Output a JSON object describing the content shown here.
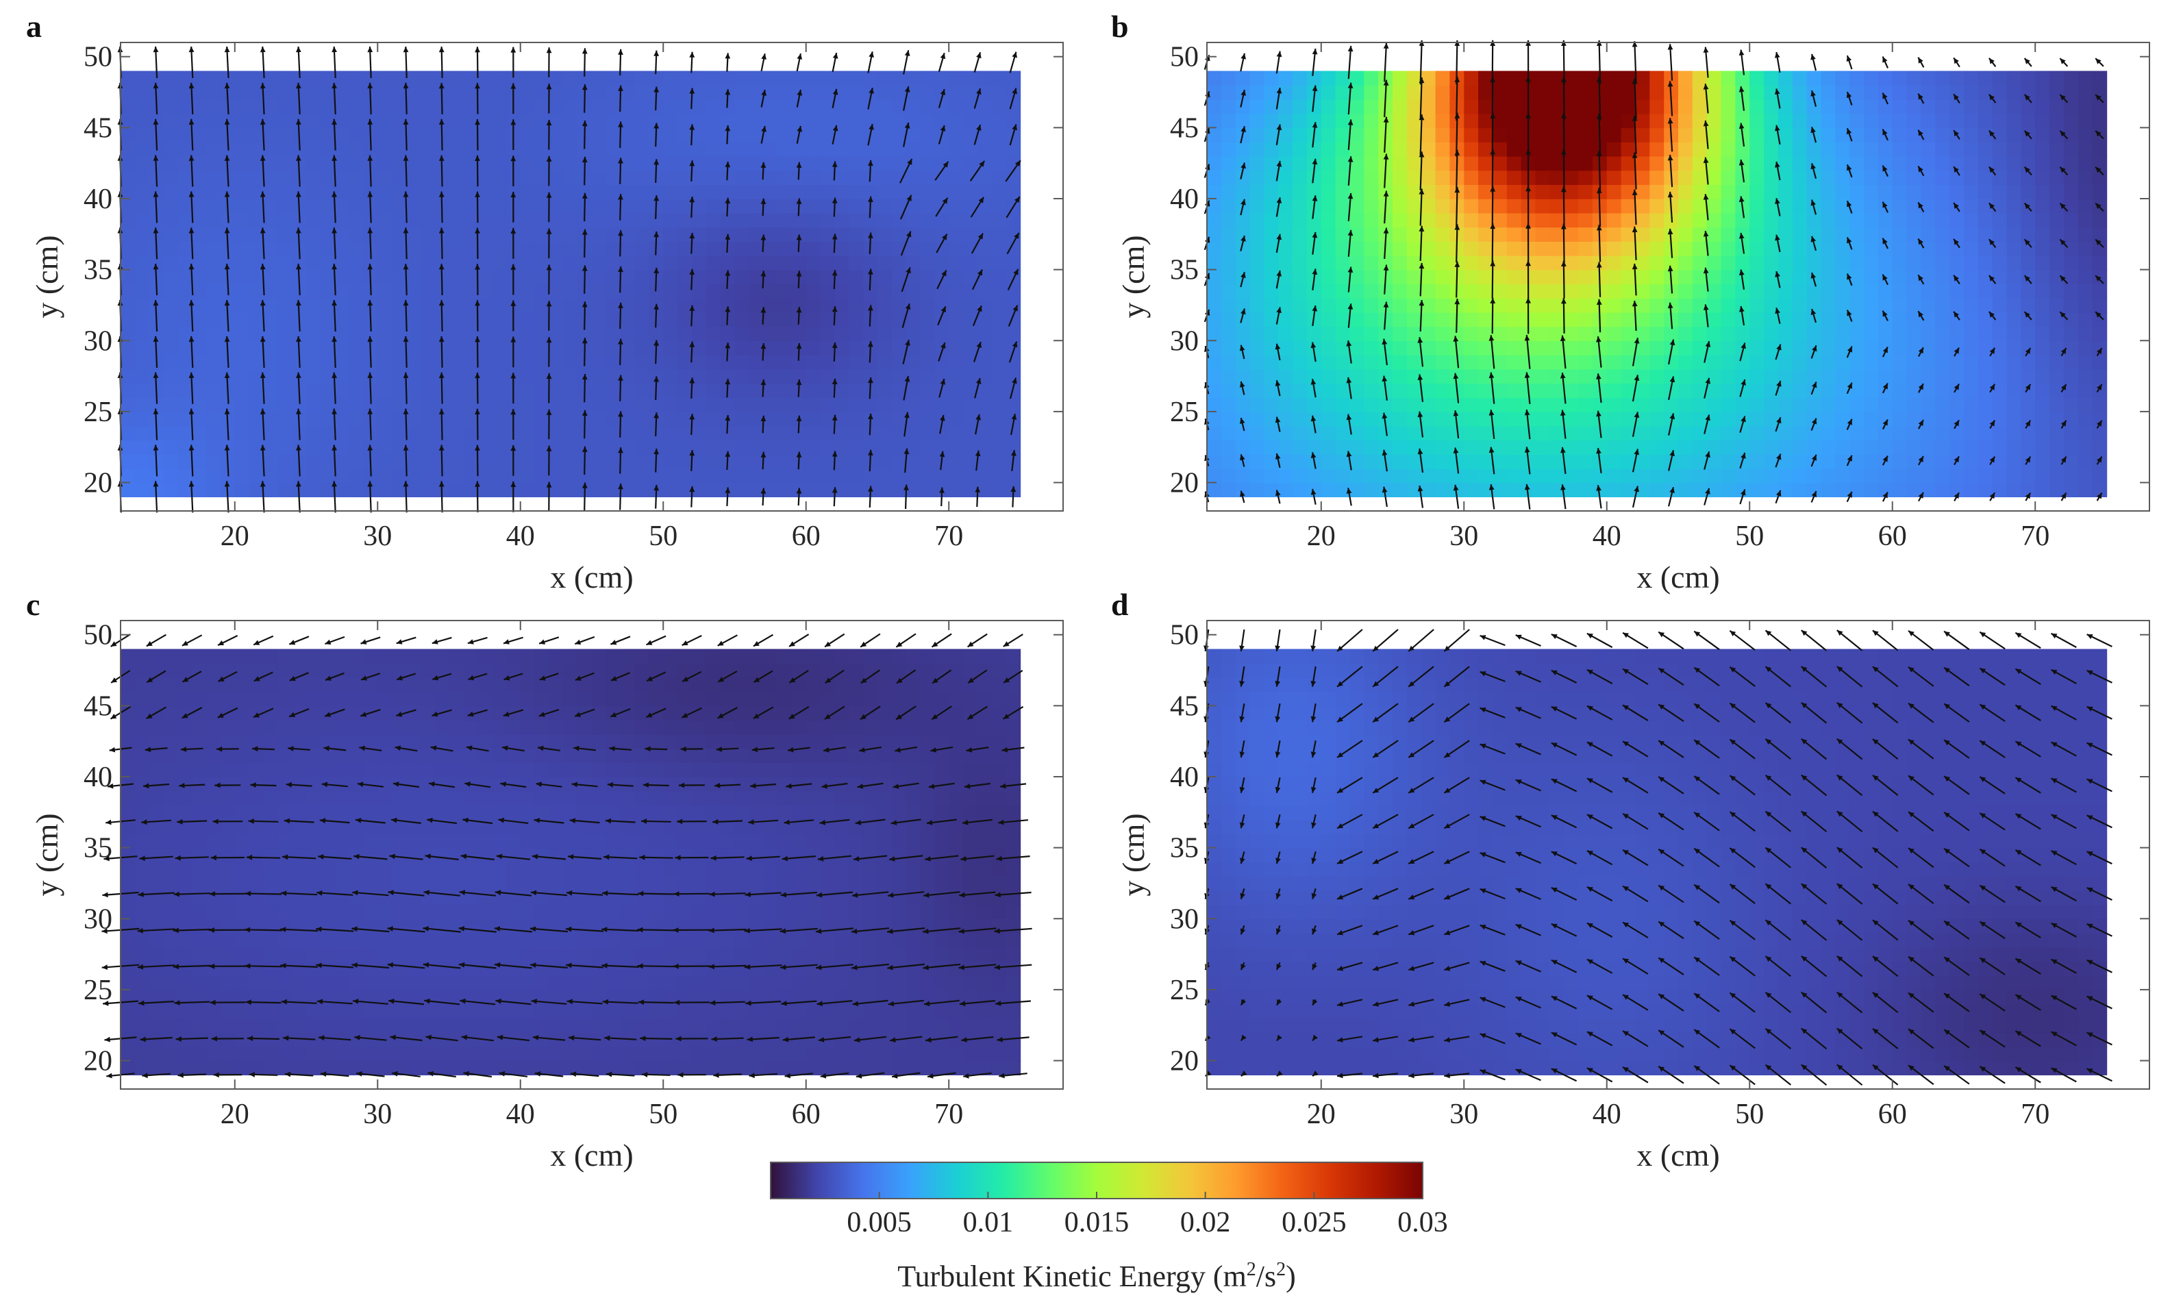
{
  "figure": {
    "description_type": "four-panel velocity vector field with turbulent kinetic energy contours"
  },
  "chart_data": [
    {
      "type": "heatmap",
      "panel": "a",
      "xlabel": "x (cm)",
      "ylabel": "y (cm)",
      "xlim": [
        12,
        78
      ],
      "ylim": [
        18,
        51
      ],
      "xticks": [
        20,
        30,
        40,
        50,
        60,
        70
      ],
      "yticks": [
        20,
        25,
        30,
        35,
        40,
        45,
        50
      ],
      "field_extent": {
        "x": [
          12,
          75
        ],
        "y": [
          19,
          49
        ]
      },
      "tke_base": 0.003,
      "tke_blobs": [
        {
          "x": 20,
          "y": 30,
          "sx": 8,
          "sy": 10,
          "amp": 0.0006
        },
        {
          "x": 58,
          "y": 33,
          "sx": 6,
          "sy": 5,
          "amp": -0.0012
        },
        {
          "x": 12,
          "y": 19,
          "sx": 5,
          "sy": 4,
          "amp": 0.0012
        },
        {
          "x": 60,
          "y": 44,
          "sx": 12,
          "sy": 5,
          "amp": 0.0006
        }
      ],
      "flow": "rise"
    },
    {
      "type": "heatmap",
      "panel": "b",
      "xlabel": "x (cm)",
      "ylabel": "y (cm)",
      "xlim": [
        12,
        78
      ],
      "ylim": [
        18,
        51
      ],
      "xticks": [
        20,
        30,
        40,
        50,
        60,
        70
      ],
      "yticks": [
        20,
        25,
        30,
        35,
        40,
        45,
        50
      ],
      "field_extent": {
        "x": [
          12,
          75
        ],
        "y": [
          19,
          49
        ]
      },
      "tke_base": 0.0025,
      "tke_blobs": [
        {
          "x": 37,
          "y": 50,
          "sx": 7,
          "sy": 8,
          "amp": 0.028
        },
        {
          "x": 34,
          "y": 40,
          "sx": 14,
          "sy": 10,
          "amp": 0.009
        },
        {
          "x": 36,
          "y": 25,
          "sx": 22,
          "sy": 12,
          "amp": 0.005
        },
        {
          "x": 75,
          "y": 40,
          "sx": 5,
          "sy": 14,
          "amp": -0.0015
        }
      ],
      "flow": "jet"
    },
    {
      "type": "heatmap",
      "panel": "c",
      "xlabel": "x (cm)",
      "ylabel": "y (cm)",
      "xlim": [
        12,
        78
      ],
      "ylim": [
        18,
        51
      ],
      "xticks": [
        20,
        30,
        40,
        50,
        60,
        70
      ],
      "yticks": [
        20,
        25,
        30,
        35,
        40,
        45,
        50
      ],
      "field_extent": {
        "x": [
          12,
          75
        ],
        "y": [
          19,
          49
        ]
      },
      "tke_base": 0.0018,
      "tke_blobs": [
        {
          "x": 35,
          "y": 33,
          "sx": 18,
          "sy": 8,
          "amp": 0.0006
        },
        {
          "x": 55,
          "y": 46,
          "sx": 10,
          "sy": 4,
          "amp": -0.0006
        },
        {
          "x": 73,
          "y": 34,
          "sx": 4,
          "sy": 6,
          "amp": -0.0005
        }
      ],
      "flow": "horizontal"
    },
    {
      "type": "heatmap",
      "panel": "d",
      "xlabel": "x (cm)",
      "ylabel": "y (cm)",
      "xlim": [
        12,
        78
      ],
      "ylim": [
        18,
        51
      ],
      "xticks": [
        20,
        30,
        40,
        50,
        60,
        70
      ],
      "yticks": [
        20,
        25,
        30,
        35,
        40,
        45,
        50
      ],
      "field_extent": {
        "x": [
          12,
          75
        ],
        "y": [
          19,
          49
        ]
      },
      "tke_base": 0.0022,
      "tke_blobs": [
        {
          "x": 18,
          "y": 42,
          "sx": 7,
          "sy": 9,
          "amp": 0.0016
        },
        {
          "x": 40,
          "y": 30,
          "sx": 8,
          "sy": 10,
          "amp": 0.0008
        },
        {
          "x": 70,
          "y": 23,
          "sx": 8,
          "sy": 6,
          "amp": -0.0009
        }
      ],
      "flow": "diagonal"
    }
  ],
  "colorbar": {
    "min": 0,
    "max": 0.03,
    "ticks": [
      "0.005",
      "0.01",
      "0.015",
      "0.02",
      "0.025",
      "0.03"
    ],
    "tick_values": [
      0.005,
      0.01,
      0.015,
      0.02,
      0.025,
      0.03
    ],
    "title_text": "Turbulent Kinetic Energy (m",
    "title_sup1": "2",
    "title_mid": "/s",
    "title_sup2": "2",
    "title_end": ")",
    "colormap": [
      "#30123b",
      "#4145ab",
      "#4675ed",
      "#39a2fc",
      "#1bcfd4",
      "#24eca6",
      "#61fc6c",
      "#a4fc3b",
      "#d1e834",
      "#f3c63a",
      "#fe9b2d",
      "#f36315",
      "#d93806",
      "#b11901",
      "#7a0403"
    ]
  },
  "colors": {
    "arrow": "#111111",
    "axes": "#5a5a5a",
    "background": "#ffffff"
  }
}
